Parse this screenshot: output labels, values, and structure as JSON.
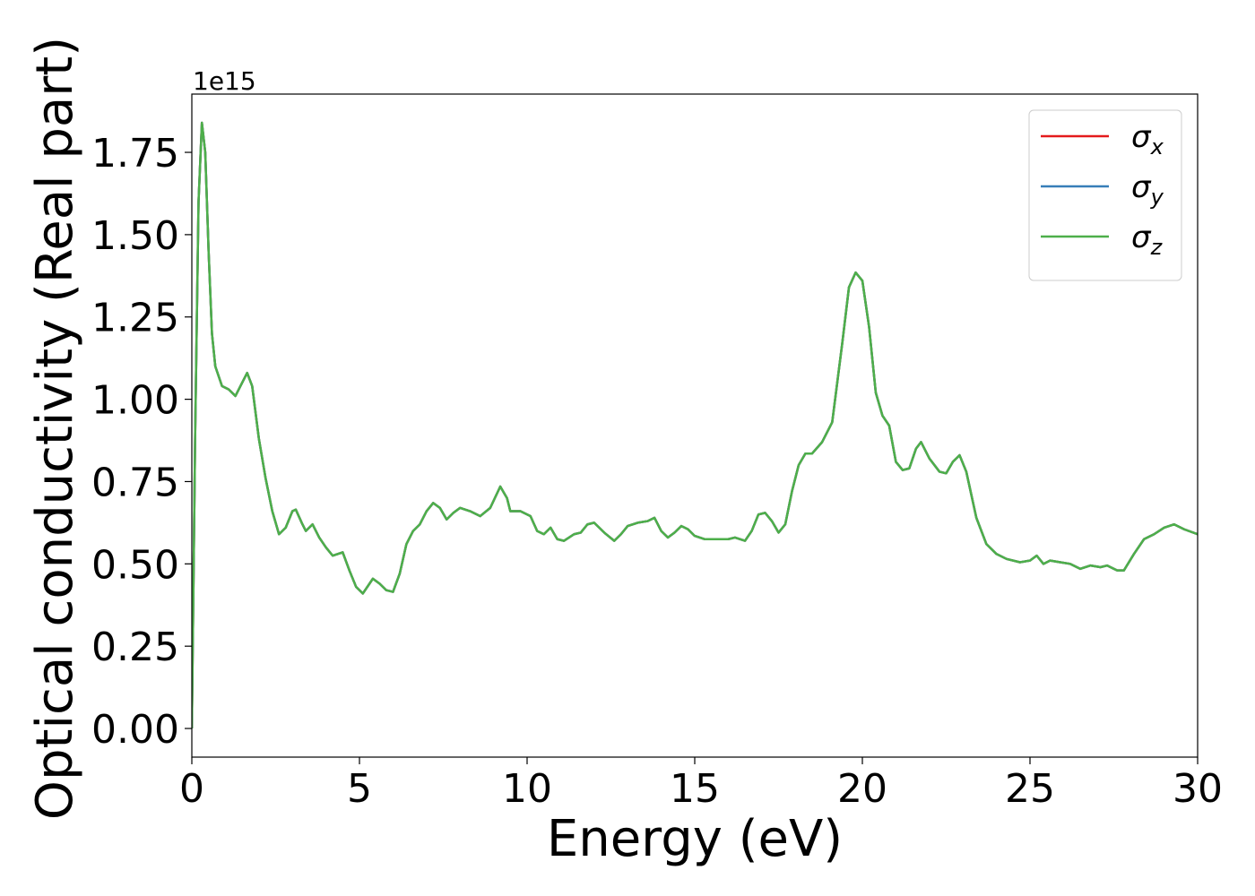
{
  "chart_data": {
    "type": "line",
    "xlabel": "Energy (eV)",
    "ylabel": "Optical conductivity (Real part)",
    "y_offset_label": "1e15",
    "x": [
      0,
      0.1,
      0.2,
      0.3,
      0.4,
      0.5,
      0.6,
      0.7,
      0.9,
      1.1,
      1.3,
      1.5,
      1.65,
      1.8,
      2.0,
      2.2,
      2.4,
      2.6,
      2.8,
      3.0,
      3.1,
      3.3,
      3.4,
      3.6,
      3.8,
      4.0,
      4.2,
      4.5,
      4.7,
      4.9,
      5.1,
      5.3,
      5.4,
      5.6,
      5.8,
      6.0,
      6.2,
      6.4,
      6.6,
      6.8,
      7.0,
      7.2,
      7.4,
      7.6,
      7.8,
      8.0,
      8.3,
      8.6,
      8.9,
      9.2,
      9.4,
      9.5,
      9.8,
      10.1,
      10.3,
      10.5,
      10.7,
      10.9,
      11.1,
      11.4,
      11.6,
      11.8,
      12.0,
      12.3,
      12.6,
      12.8,
      13.0,
      13.3,
      13.6,
      13.8,
      14.0,
      14.2,
      14.4,
      14.6,
      14.8,
      15.0,
      15.3,
      15.6,
      16.0,
      16.2,
      16.5,
      16.7,
      16.9,
      17.1,
      17.3,
      17.5,
      17.7,
      17.9,
      18.1,
      18.3,
      18.5,
      18.8,
      19.1,
      19.4,
      19.6,
      19.8,
      20.0,
      20.2,
      20.4,
      20.6,
      20.8,
      21.0,
      21.2,
      21.4,
      21.6,
      21.75,
      22.0,
      22.3,
      22.5,
      22.7,
      22.9,
      23.1,
      23.4,
      23.7,
      24.0,
      24.3,
      24.7,
      25.0,
      25.2,
      25.4,
      25.6,
      25.9,
      26.2,
      26.5,
      26.8,
      27.1,
      27.3,
      27.6,
      27.8,
      28.1,
      28.4,
      28.7,
      29.0,
      29.3,
      29.6,
      30.0
    ],
    "series": [
      {
        "name": "σx",
        "color": "#e41a1c",
        "values": [
          0,
          0.9,
          1.6,
          1.84,
          1.75,
          1.45,
          1.2,
          1.1,
          1.04,
          1.03,
          1.01,
          1.05,
          1.08,
          1.04,
          0.88,
          0.76,
          0.66,
          0.59,
          0.61,
          0.66,
          0.665,
          0.62,
          0.6,
          0.62,
          0.58,
          0.55,
          0.525,
          0.535,
          0.48,
          0.43,
          0.41,
          0.44,
          0.455,
          0.44,
          0.42,
          0.415,
          0.47,
          0.56,
          0.6,
          0.62,
          0.66,
          0.685,
          0.67,
          0.635,
          0.655,
          0.67,
          0.66,
          0.645,
          0.67,
          0.735,
          0.7,
          0.66,
          0.66,
          0.645,
          0.6,
          0.59,
          0.61,
          0.575,
          0.57,
          0.59,
          0.595,
          0.62,
          0.625,
          0.595,
          0.57,
          0.59,
          0.615,
          0.625,
          0.63,
          0.64,
          0.6,
          0.58,
          0.595,
          0.615,
          0.605,
          0.585,
          0.575,
          0.575,
          0.575,
          0.58,
          0.57,
          0.6,
          0.65,
          0.655,
          0.63,
          0.595,
          0.62,
          0.72,
          0.8,
          0.835,
          0.835,
          0.87,
          0.93,
          1.17,
          1.34,
          1.385,
          1.36,
          1.22,
          1.02,
          0.95,
          0.92,
          0.81,
          0.785,
          0.79,
          0.85,
          0.87,
          0.82,
          0.78,
          0.775,
          0.81,
          0.83,
          0.78,
          0.64,
          0.56,
          0.53,
          0.515,
          0.505,
          0.51,
          0.525,
          0.5,
          0.51,
          0.505,
          0.5,
          0.485,
          0.495,
          0.49,
          0.495,
          0.48,
          0.48,
          0.53,
          0.575,
          0.59,
          0.61,
          0.62,
          0.605,
          0.59
        ]
      },
      {
        "name": "σy",
        "color": "#377eb8",
        "values": [
          0,
          0.9,
          1.6,
          1.84,
          1.75,
          1.45,
          1.2,
          1.1,
          1.04,
          1.03,
          1.01,
          1.05,
          1.08,
          1.04,
          0.88,
          0.76,
          0.66,
          0.59,
          0.61,
          0.66,
          0.665,
          0.62,
          0.6,
          0.62,
          0.58,
          0.55,
          0.525,
          0.535,
          0.48,
          0.43,
          0.41,
          0.44,
          0.455,
          0.44,
          0.42,
          0.415,
          0.47,
          0.56,
          0.6,
          0.62,
          0.66,
          0.685,
          0.67,
          0.635,
          0.655,
          0.67,
          0.66,
          0.645,
          0.67,
          0.735,
          0.7,
          0.66,
          0.66,
          0.645,
          0.6,
          0.59,
          0.61,
          0.575,
          0.57,
          0.59,
          0.595,
          0.62,
          0.625,
          0.595,
          0.57,
          0.59,
          0.615,
          0.625,
          0.63,
          0.64,
          0.6,
          0.58,
          0.595,
          0.615,
          0.605,
          0.585,
          0.575,
          0.575,
          0.575,
          0.58,
          0.57,
          0.6,
          0.65,
          0.655,
          0.63,
          0.595,
          0.62,
          0.72,
          0.8,
          0.835,
          0.835,
          0.87,
          0.93,
          1.17,
          1.34,
          1.385,
          1.36,
          1.22,
          1.02,
          0.95,
          0.92,
          0.81,
          0.785,
          0.79,
          0.85,
          0.87,
          0.82,
          0.78,
          0.775,
          0.81,
          0.83,
          0.78,
          0.64,
          0.56,
          0.53,
          0.515,
          0.505,
          0.51,
          0.525,
          0.5,
          0.51,
          0.505,
          0.5,
          0.485,
          0.495,
          0.49,
          0.495,
          0.48,
          0.48,
          0.53,
          0.575,
          0.59,
          0.61,
          0.62,
          0.605,
          0.59
        ]
      },
      {
        "name": "σz",
        "color": "#4daf4a",
        "values": [
          0,
          0.9,
          1.6,
          1.84,
          1.75,
          1.45,
          1.2,
          1.1,
          1.04,
          1.03,
          1.01,
          1.05,
          1.08,
          1.04,
          0.88,
          0.76,
          0.66,
          0.59,
          0.61,
          0.66,
          0.665,
          0.62,
          0.6,
          0.62,
          0.58,
          0.55,
          0.525,
          0.535,
          0.48,
          0.43,
          0.41,
          0.44,
          0.455,
          0.44,
          0.42,
          0.415,
          0.47,
          0.56,
          0.6,
          0.62,
          0.66,
          0.685,
          0.67,
          0.635,
          0.655,
          0.67,
          0.66,
          0.645,
          0.67,
          0.735,
          0.7,
          0.66,
          0.66,
          0.645,
          0.6,
          0.59,
          0.61,
          0.575,
          0.57,
          0.59,
          0.595,
          0.62,
          0.625,
          0.595,
          0.57,
          0.59,
          0.615,
          0.625,
          0.63,
          0.64,
          0.6,
          0.58,
          0.595,
          0.615,
          0.605,
          0.585,
          0.575,
          0.575,
          0.575,
          0.58,
          0.57,
          0.6,
          0.65,
          0.655,
          0.63,
          0.595,
          0.62,
          0.72,
          0.8,
          0.835,
          0.835,
          0.87,
          0.93,
          1.17,
          1.34,
          1.385,
          1.36,
          1.22,
          1.02,
          0.95,
          0.92,
          0.81,
          0.785,
          0.79,
          0.85,
          0.87,
          0.82,
          0.78,
          0.775,
          0.81,
          0.83,
          0.78,
          0.64,
          0.56,
          0.53,
          0.515,
          0.505,
          0.51,
          0.525,
          0.5,
          0.51,
          0.505,
          0.5,
          0.485,
          0.495,
          0.49,
          0.495,
          0.48,
          0.48,
          0.53,
          0.575,
          0.59,
          0.61,
          0.62,
          0.605,
          0.59
        ]
      }
    ],
    "xlim": [
      0,
      30
    ],
    "xticks": [
      0,
      5,
      10,
      15,
      20,
      25,
      30
    ],
    "ylim": [
      -0.087,
      1.927
    ],
    "yticks": [
      {
        "value": 0,
        "label": "0.00"
      },
      {
        "value": 0.25,
        "label": "0.25"
      },
      {
        "value": 0.5,
        "label": "0.50"
      },
      {
        "value": 0.75,
        "label": "0.75"
      },
      {
        "value": 1,
        "label": "1.00"
      },
      {
        "value": 1.25,
        "label": "1.25"
      },
      {
        "value": 1.5,
        "label": "1.50"
      },
      {
        "value": 1.75,
        "label": "1.75"
      }
    ],
    "legend": "upper right",
    "grid": false
  }
}
